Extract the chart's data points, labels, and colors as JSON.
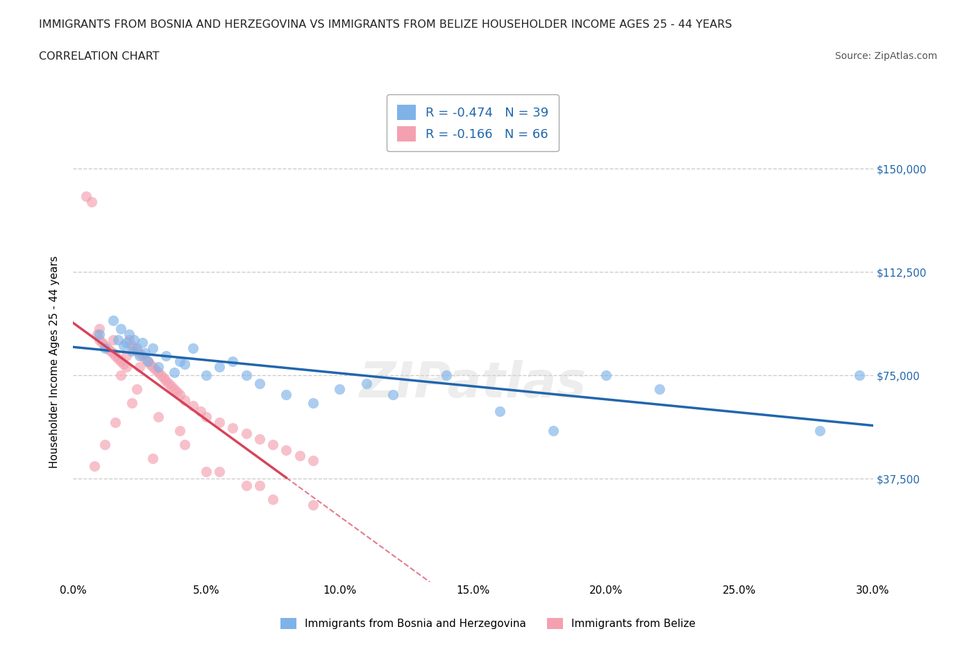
{
  "title_line1": "IMMIGRANTS FROM BOSNIA AND HERZEGOVINA VS IMMIGRANTS FROM BELIZE HOUSEHOLDER INCOME AGES 25 - 44 YEARS",
  "title_line2": "CORRELATION CHART",
  "source_text": "Source: ZipAtlas.com",
  "xlabel": "",
  "ylabel": "Householder Income Ages 25 - 44 years",
  "xlim": [
    0.0,
    0.3
  ],
  "ylim": [
    0,
    160000
  ],
  "xtick_labels": [
    "0.0%",
    "5.0%",
    "10.0%",
    "15.0%",
    "20.0%",
    "25.0%",
    "30.0%"
  ],
  "xtick_values": [
    0.0,
    0.05,
    0.1,
    0.15,
    0.2,
    0.25,
    0.3
  ],
  "ytick_labels": [
    "$37,500",
    "$75,000",
    "$112,500",
    "$150,000"
  ],
  "ytick_values": [
    37500,
    75000,
    112500,
    150000
  ],
  "grid_color": "#cccccc",
  "background_color": "#ffffff",
  "watermark": "ZIPatlas",
  "legend_R1": "R = -0.474",
  "legend_N1": "N = 39",
  "legend_R2": "R = -0.166",
  "legend_N2": "N = 66",
  "color_bosnia": "#7fb3e8",
  "color_belize": "#f4a0b0",
  "color_trendline_bosnia": "#2166ac",
  "color_trendline_belize": "#d6445a",
  "scatter_alpha": 0.65,
  "marker_size": 120,
  "bosnia_x": [
    0.01,
    0.012,
    0.015,
    0.017,
    0.018,
    0.019,
    0.02,
    0.021,
    0.022,
    0.023,
    0.024,
    0.025,
    0.026,
    0.027,
    0.028,
    0.03,
    0.032,
    0.035,
    0.038,
    0.04,
    0.042,
    0.045,
    0.05,
    0.055,
    0.06,
    0.065,
    0.07,
    0.08,
    0.09,
    0.1,
    0.11,
    0.12,
    0.14,
    0.16,
    0.18,
    0.2,
    0.22,
    0.28,
    0.295
  ],
  "bosnia_y": [
    90000,
    85000,
    95000,
    88000,
    92000,
    86000,
    87000,
    90000,
    84000,
    88000,
    85000,
    82000,
    87000,
    83000,
    80000,
    85000,
    78000,
    82000,
    76000,
    80000,
    79000,
    85000,
    75000,
    78000,
    80000,
    75000,
    72000,
    68000,
    65000,
    70000,
    72000,
    68000,
    75000,
    62000,
    55000,
    75000,
    70000,
    55000,
    75000
  ],
  "belize_x": [
    0.005,
    0.007,
    0.009,
    0.01,
    0.011,
    0.012,
    0.013,
    0.014,
    0.015,
    0.016,
    0.017,
    0.018,
    0.019,
    0.02,
    0.021,
    0.022,
    0.023,
    0.024,
    0.025,
    0.026,
    0.027,
    0.028,
    0.029,
    0.03,
    0.031,
    0.032,
    0.033,
    0.034,
    0.035,
    0.036,
    0.037,
    0.038,
    0.039,
    0.04,
    0.042,
    0.045,
    0.048,
    0.05,
    0.055,
    0.06,
    0.065,
    0.07,
    0.075,
    0.08,
    0.085,
    0.09,
    0.01,
    0.015,
    0.02,
    0.025,
    0.008,
    0.012,
    0.016,
    0.022,
    0.03,
    0.04,
    0.05,
    0.065,
    0.075,
    0.09,
    0.018,
    0.024,
    0.032,
    0.042,
    0.055,
    0.07
  ],
  "belize_y": [
    140000,
    138000,
    90000,
    88000,
    87000,
    86000,
    85000,
    84000,
    83000,
    82000,
    81000,
    80000,
    79000,
    78000,
    88000,
    86000,
    85000,
    84000,
    83000,
    82000,
    81000,
    80000,
    79000,
    78000,
    77000,
    76000,
    75000,
    74000,
    73000,
    72000,
    71000,
    70000,
    69000,
    68000,
    66000,
    64000,
    62000,
    60000,
    58000,
    56000,
    54000,
    52000,
    50000,
    48000,
    46000,
    44000,
    92000,
    88000,
    82000,
    78000,
    42000,
    50000,
    58000,
    65000,
    45000,
    55000,
    40000,
    35000,
    30000,
    28000,
    75000,
    70000,
    60000,
    50000,
    40000,
    35000
  ]
}
